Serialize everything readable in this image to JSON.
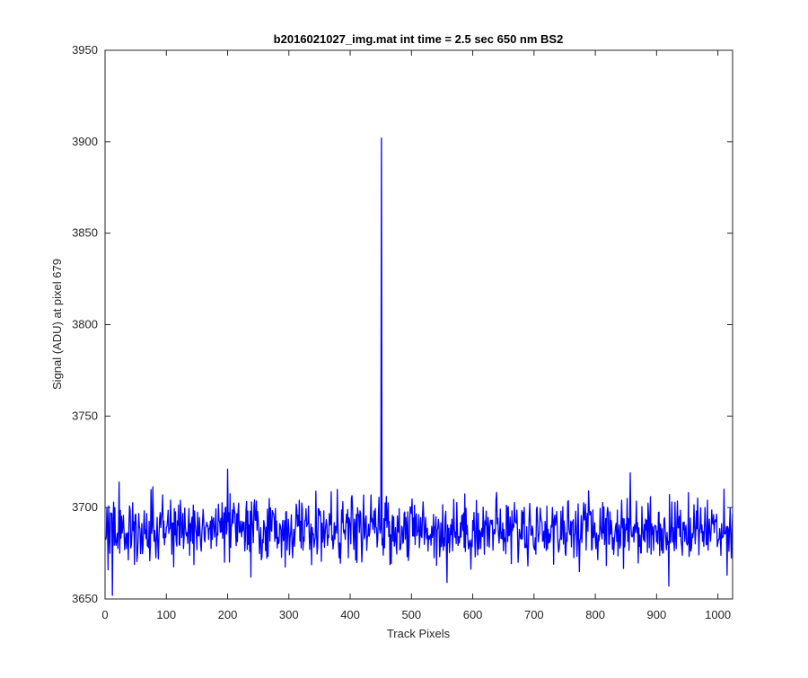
{
  "chart_data": {
    "type": "line",
    "title": "b2016021027_img.mat int time = 2.5 sec  650 nm BS2",
    "xlabel": "Track Pixels",
    "ylabel": "Signal (ADU) at pixel 679",
    "xlim": [
      0,
      1024
    ],
    "ylim": [
      3650,
      3950
    ],
    "xticks": [
      0,
      100,
      200,
      300,
      400,
      500,
      600,
      700,
      800,
      900,
      1000
    ],
    "yticks": [
      3650,
      3700,
      3750,
      3800,
      3850,
      3900,
      3950
    ],
    "grid": false,
    "legend": "none",
    "series_color": "#0000ff",
    "series": [
      {
        "x_start": 1,
        "x_step": 1,
        "count": 1024,
        "baseline_mean": 3688,
        "noise_amplitude": 10,
        "spikes": [
          {
            "x": 451,
            "y": 3902
          },
          {
            "x": 200,
            "y": 3721
          },
          {
            "x": 857,
            "y": 3719
          },
          {
            "x": 12,
            "y": 3652
          },
          {
            "x": 920,
            "y": 3657
          },
          {
            "x": 558,
            "y": 3659
          },
          {
            "x": 238,
            "y": 3662
          },
          {
            "x": 1010,
            "y": 3710
          }
        ]
      }
    ]
  }
}
